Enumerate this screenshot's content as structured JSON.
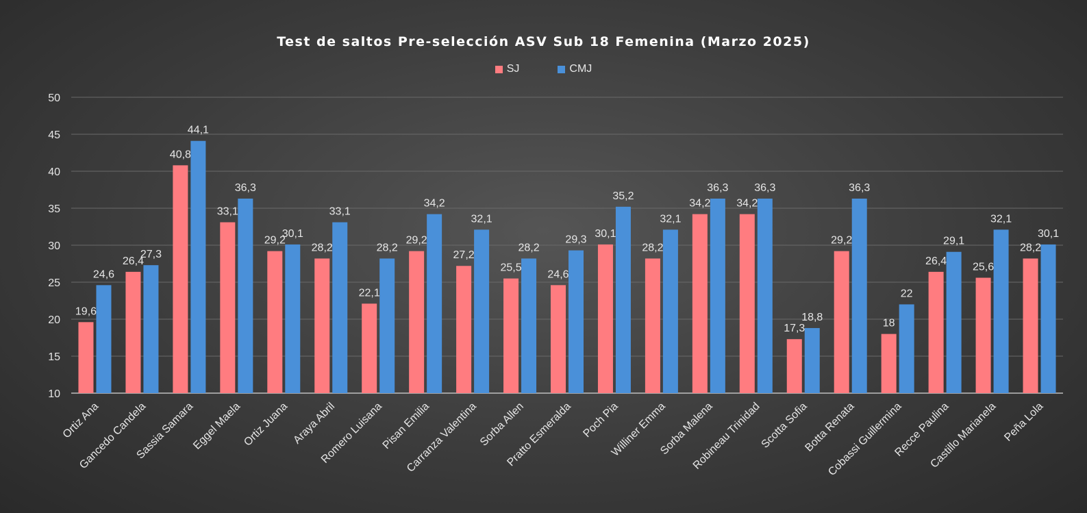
{
  "chart_data": {
    "type": "bar",
    "title": "Test de saltos Pre-selección ASV Sub 18 Femenina (Marzo 2025)",
    "xlabel": "",
    "ylabel": "",
    "ylim": [
      10,
      50
    ],
    "yticks": [
      10,
      15,
      20,
      25,
      30,
      35,
      40,
      45,
      50
    ],
    "grid": true,
    "legend_position": "top-center",
    "categories": [
      "Ortiz Ana",
      "Gancedo Candela",
      "Sassia Samara",
      "Eggel Maela",
      "Ortiz Juana",
      "Araya Abril",
      "Romero Luisana",
      "Pisan Emilia",
      "Carranza Valentina",
      "Sorba Allen",
      "Pratto Esmeralda",
      "Poch Pia",
      "Williner Emma",
      "Sorba Malena",
      "Robineau Trinidad",
      "Scotta Sofia",
      "Botta Renata",
      "Cobassi Guillermina",
      "Recce Paulina",
      "Castillo Marianela",
      "Peña Lola"
    ],
    "series": [
      {
        "name": "SJ",
        "color": "#ff7c80",
        "values": [
          19.6,
          26.4,
          40.8,
          33.1,
          29.2,
          28.2,
          22.1,
          29.2,
          27.2,
          25.5,
          24.6,
          30.1,
          28.2,
          34.2,
          34.2,
          17.3,
          29.2,
          18,
          26.4,
          25.6,
          28.2
        ],
        "labels": [
          "19,6",
          "26,4",
          "40,8",
          "33,1",
          "29,2",
          "28,2",
          "22,1",
          "29,2",
          "27,2",
          "25,5",
          "24,6",
          "30,1",
          "28,2",
          "34,2",
          "34,2",
          "17,3",
          "29,2",
          "18",
          "26,4",
          "25,6",
          "28,2"
        ]
      },
      {
        "name": "CMJ",
        "color": "#4a90d9",
        "values": [
          24.6,
          27.3,
          44.1,
          36.3,
          30.1,
          33.1,
          28.2,
          34.2,
          32.1,
          28.2,
          29.3,
          35.2,
          32.1,
          36.3,
          36.3,
          18.8,
          36.3,
          22,
          29.1,
          32.1,
          30.1
        ],
        "labels": [
          "24,6",
          "27,3",
          "44,1",
          "36,3",
          "30,1",
          "33,1",
          "28,2",
          "34,2",
          "32,1",
          "28,2",
          "29,3",
          "35,2",
          "32,1",
          "36,3",
          "36,3",
          "18,8",
          "36,3",
          "22",
          "29,1",
          "32,1",
          "30,1"
        ]
      }
    ]
  }
}
